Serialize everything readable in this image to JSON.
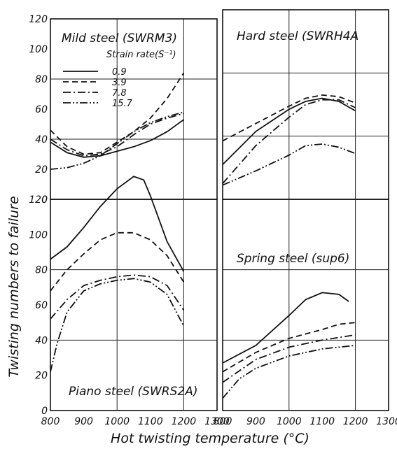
{
  "chart_data": {
    "type": "line",
    "xlabel": "Hot twisting temperature (°C)",
    "ylabel": "Twisting numbers to failure",
    "legend_title": "Strain rate(S⁻¹)",
    "series_names": [
      "0.9",
      "3.9",
      "7.8",
      "15.7"
    ],
    "dash_styles": [
      "solid",
      "dashed",
      "dashdot",
      "dashdotdot"
    ],
    "x_ticks": [
      "800",
      "900",
      "1000",
      "1100",
      "1200",
      "1300"
    ],
    "y_ticks": [
      "0",
      "20",
      "40",
      "60",
      "80",
      "100",
      "120"
    ],
    "xlim": [
      800,
      1300
    ],
    "ylim": [
      0,
      120
    ],
    "grid": "major lines at x=1000,1200 and y=40,80",
    "panels": [
      {
        "title": "Mild steel (SWRM3)",
        "series": [
          {
            "name": "0.9",
            "x": [
              800,
              850,
              900,
              950,
              1000,
              1050,
              1100,
              1150,
              1200
            ],
            "values": [
              38,
              31,
              28,
              29,
              32,
              35,
              39,
              45,
              53
            ]
          },
          {
            "name": "3.9",
            "x": [
              800,
              850,
              900,
              950,
              1000,
              1050,
              1100,
              1150,
              1200
            ],
            "values": [
              46,
              35,
              30,
              31,
              38,
              45,
              54,
              67,
              84
            ]
          },
          {
            "name": "7.8",
            "x": [
              800,
              850,
              900,
              950,
              1000,
              1050,
              1100,
              1150,
              1200
            ],
            "values": [
              40,
              33,
              29,
              30,
              35,
              43,
              50,
              54,
              57
            ]
          },
          {
            "name": "15.7",
            "x": [
              800,
              850,
              900,
              950,
              1000,
              1050,
              1100,
              1150,
              1200
            ],
            "values": [
              20,
              21,
              24,
              29,
              37,
              45,
              51,
              55,
              58
            ]
          }
        ]
      },
      {
        "title": "Hard steel (SWRH4A",
        "series": [
          {
            "name": "0.9",
            "x": [
              800,
              900,
              1000,
              1050,
              1100,
              1150,
              1200
            ],
            "values": [
              22,
              43,
              57,
              62,
              64,
              62,
              56
            ]
          },
          {
            "name": "3.9",
            "x": [
              800,
              900,
              1000,
              1050,
              1100,
              1150,
              1200
            ],
            "values": [
              37,
              48,
              59,
              64,
              66,
              65,
              61
            ]
          },
          {
            "name": "7.8",
            "x": [
              800,
              900,
              1000,
              1050,
              1100,
              1150,
              1200
            ],
            "values": [
              10,
              34,
              52,
              60,
              63,
              63,
              58
            ]
          },
          {
            "name": "15.7",
            "x": [
              800,
              900,
              1000,
              1050,
              1100,
              1150,
              1200
            ],
            "values": [
              9,
              18,
              28,
              34,
              35,
              33,
              29
            ]
          }
        ]
      },
      {
        "title": "Piano steel (SWRS2A)",
        "series": [
          {
            "name": "0.9",
            "x": [
              800,
              850,
              900,
              950,
              1000,
              1050,
              1080,
              1100,
              1150,
              1200
            ],
            "values": [
              86,
              93,
              104,
              116,
              126,
              133,
              131,
              122,
              96,
              79
            ]
          },
          {
            "name": "3.9",
            "x": [
              800,
              850,
              900,
              950,
              1000,
              1050,
              1100,
              1150,
              1200
            ],
            "values": [
              68,
              80,
              89,
              97,
              101,
              101,
              97,
              88,
              73
            ]
          },
          {
            "name": "7.8",
            "x": [
              800,
              850,
              900,
              950,
              1000,
              1050,
              1100,
              1150,
              1200
            ],
            "values": [
              52,
              63,
              71,
              74,
              76,
              77,
              76,
              71,
              57
            ]
          },
          {
            "name": "15.7",
            "x": [
              800,
              820,
              850,
              900,
              950,
              1000,
              1050,
              1100,
              1150,
              1200
            ],
            "values": [
              22,
              38,
              56,
              68,
              72,
              74,
              75,
              73,
              66,
              48
            ]
          }
        ]
      },
      {
        "title": "Spring steel (sup6)",
        "series": [
          {
            "name": "0.9",
            "x": [
              800,
              900,
              1000,
              1050,
              1100,
              1150,
              1180
            ],
            "values": [
              27,
              37,
              54,
              63,
              67,
              66,
              62
            ]
          },
          {
            "name": "3.9",
            "x": [
              800,
              900,
              1000,
              1100,
              1150,
              1200
            ],
            "values": [
              22,
              33,
              41,
              46,
              49,
              50
            ]
          },
          {
            "name": "7.8",
            "x": [
              800,
              900,
              1000,
              1100,
              1200
            ],
            "values": [
              16,
              29,
              36,
              40,
              43
            ]
          },
          {
            "name": "15.7",
            "x": [
              800,
              850,
              900,
              1000,
              1100,
              1200
            ],
            "values": [
              7,
              18,
              24,
              31,
              35,
              37
            ]
          }
        ]
      }
    ]
  }
}
